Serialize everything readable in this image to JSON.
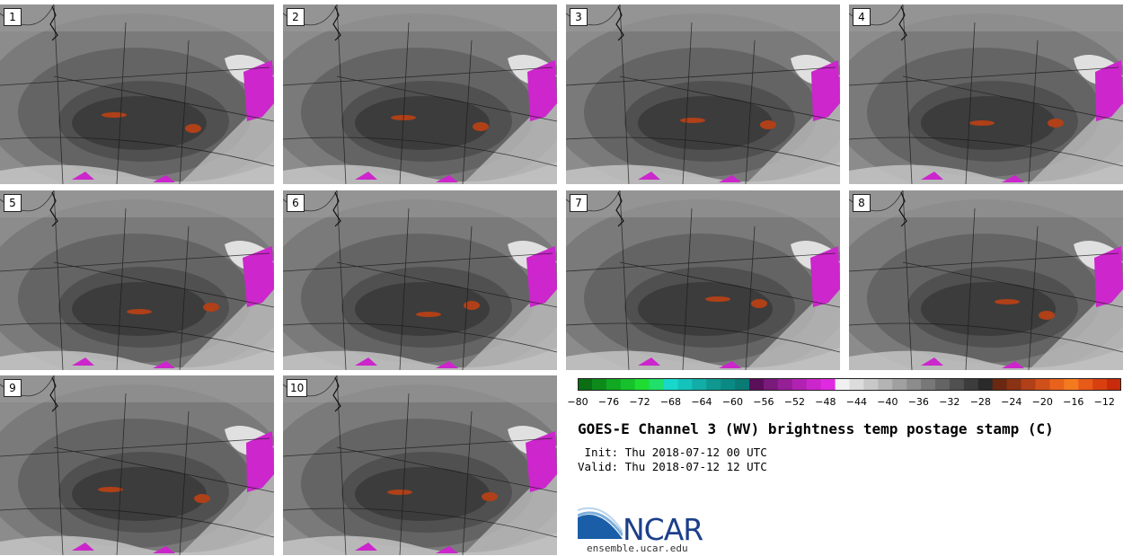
{
  "panels": [
    {
      "label": "1"
    },
    {
      "label": "2"
    },
    {
      "label": "3"
    },
    {
      "label": "4"
    },
    {
      "label": "5"
    },
    {
      "label": "6"
    },
    {
      "label": "7"
    },
    {
      "label": "8"
    },
    {
      "label": "9"
    },
    {
      "label": "10"
    }
  ],
  "colorbar": {
    "ticks": [
      "−80",
      "−76",
      "−72",
      "−68",
      "−64",
      "−60",
      "−56",
      "−52",
      "−48",
      "−44",
      "−40",
      "−36",
      "−32",
      "−28",
      "−24",
      "−20",
      "−16",
      "−12"
    ],
    "colors": [
      "#0a6e14",
      "#0d8a1a",
      "#11a822",
      "#16c22b",
      "#1fdc33",
      "#20e06a",
      "#18d8cc",
      "#14c3bb",
      "#12ada6",
      "#0f9890",
      "#0b8a84",
      "#0a7a75",
      "#5a0f5a",
      "#7a1a7a",
      "#961f96",
      "#b222b2",
      "#cb26cb",
      "#e02ae0",
      "#f0f0f0",
      "#dcdcdc",
      "#c8c8c8",
      "#b4b4b4",
      "#a0a0a0",
      "#8c8c8c",
      "#787878",
      "#646464",
      "#505050",
      "#3c3c3c",
      "#2a2a2a",
      "#6a2810",
      "#8a3214",
      "#b04018",
      "#d0501a",
      "#e8621c",
      "#f47a20",
      "#e85a18",
      "#d84010",
      "#c82a0a"
    ]
  },
  "title": "GOES-E Channel 3 (WV) brightness temp postage stamp (C)",
  "init": " Init: Thu 2018-07-12 00 UTC",
  "valid": "Valid: Thu 2018-07-12 12 UTC",
  "logo": {
    "text": "NCAR",
    "site": "ensemble.ucar.edu"
  }
}
